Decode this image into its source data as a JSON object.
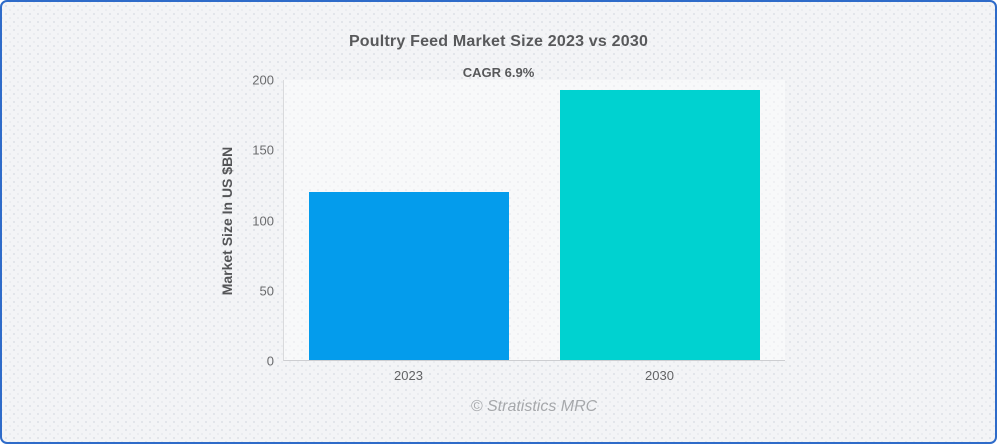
{
  "card": {
    "border_color": "#2e6bc9",
    "background_color": "#f3f4f6"
  },
  "chart_data": {
    "type": "bar",
    "title": "Poultry Feed Market Size 2023 vs 2030",
    "subtitle": "CAGR 6.9%",
    "ylabel": "Market Size In US $BN",
    "xlabel": "",
    "categories": [
      "2023",
      "2030"
    ],
    "values": [
      120,
      193
    ],
    "bar_colors": [
      "#049cec",
      "#00d2d0"
    ],
    "ylim": [
      0,
      200
    ],
    "yticks": [
      0,
      50,
      100,
      150,
      200
    ],
    "grid": false,
    "legend": false,
    "bar_width_pct": 40
  },
  "footer": {
    "credit": "© Stratistics MRC"
  }
}
